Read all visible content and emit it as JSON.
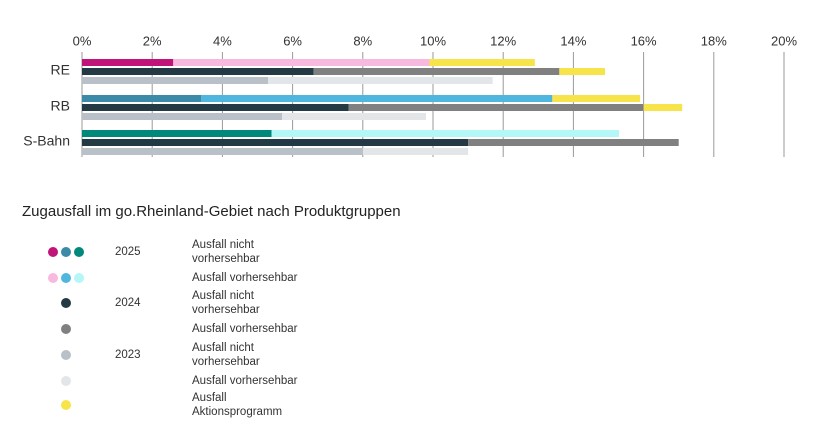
{
  "chart_data": {
    "type": "bar",
    "orientation": "horizontal",
    "title": "Zugausfall im go.Rheinland-Gebiet nach Produktgruppen",
    "categories": [
      "RE",
      "RB",
      "S-Bahn"
    ],
    "xlim": [
      0,
      20
    ],
    "xticks": [
      {
        "value": 0,
        "label": "0%"
      },
      {
        "value": 2,
        "label": "2%"
      },
      {
        "value": 4,
        "label": "4%"
      },
      {
        "value": 6,
        "label": "6%"
      },
      {
        "value": 8,
        "label": "8%"
      },
      {
        "value": 10,
        "label": "10%"
      },
      {
        "value": 12,
        "label": "12%"
      },
      {
        "value": 14,
        "label": "14%"
      },
      {
        "value": 16,
        "label": "16%"
      },
      {
        "value": 18,
        "label": "18%"
      },
      {
        "value": 20,
        "label": "20%"
      }
    ],
    "grid": true,
    "rows": [
      {
        "year": "2025",
        "series": [
          {
            "name": "Ausfall nicht vorhersehbar",
            "colors": [
              "#c0147a",
              "#3a8aa8",
              "#00897b"
            ],
            "values": [
              2.6,
              3.4,
              5.4
            ]
          },
          {
            "name": "Ausfall vorhersehbar",
            "colors": [
              "#f7b9de",
              "#4fb6de",
              "#b3f7f7"
            ],
            "values": [
              7.3,
              10.0,
              9.9
            ]
          }
        ]
      },
      {
        "year": "2024",
        "series": [
          {
            "name": "Ausfall nicht vorhersehbar",
            "colors": [
              "#233a45",
              "#233a45",
              "#233a45"
            ],
            "values": [
              6.6,
              7.6,
              11.0
            ]
          },
          {
            "name": "Ausfall vorhersehbar",
            "colors": [
              "#808080",
              "#808080",
              "#808080"
            ],
            "values": [
              7.0,
              8.4,
              6.0
            ]
          }
        ]
      },
      {
        "year": "2023",
        "series": [
          {
            "name": "Ausfall nicht vorhersehbar",
            "colors": [
              "#b9c0c7",
              "#b9c0c7",
              "#b9c0c7"
            ],
            "values": [
              5.3,
              5.7,
              8.0
            ]
          },
          {
            "name": "Ausfall vorhersehbar",
            "colors": [
              "#e3e6e9",
              "#e3e6e9",
              "#e3e6e9"
            ],
            "values": [
              6.4,
              4.1,
              3.0
            ]
          }
        ]
      }
    ],
    "extra_series": {
      "name": "Ausfall Aktionsprogramm",
      "color": "#f7e44a",
      "values": [
        [
          3.0,
          2.5,
          null
        ],
        [
          1.3,
          1.1,
          null
        ],
        [
          null,
          null,
          null
        ]
      ]
    }
  }
}
